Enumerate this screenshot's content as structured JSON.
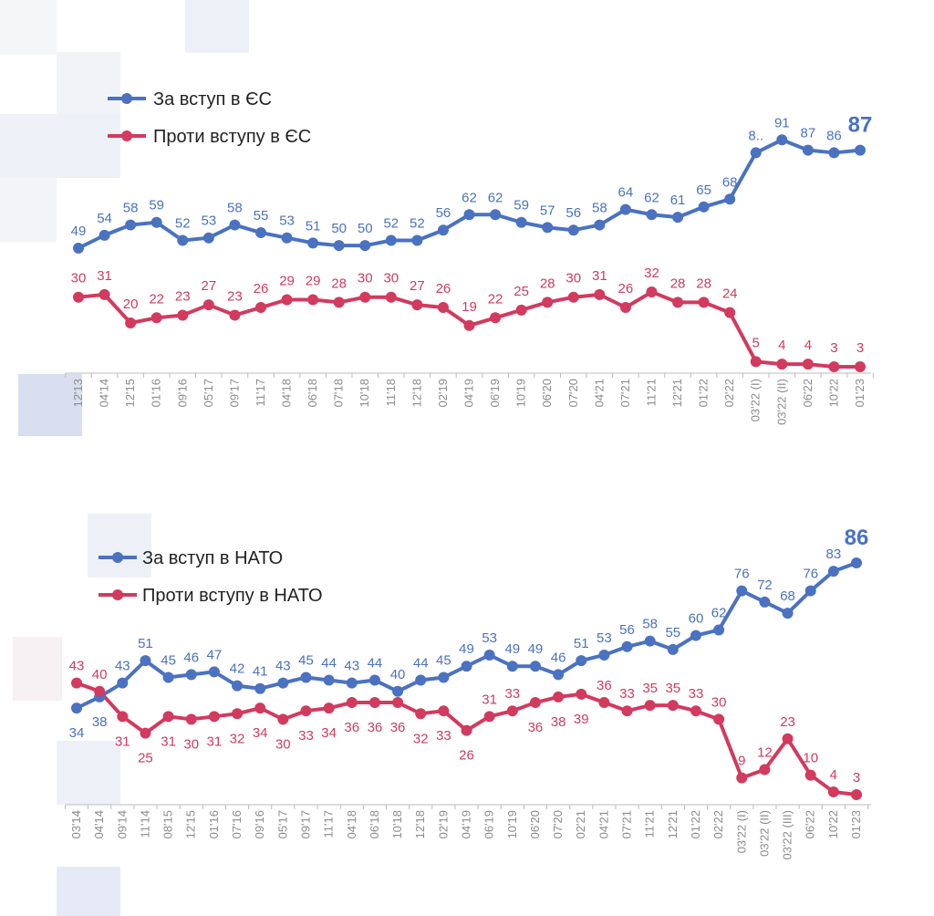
{
  "colors": {
    "blue": "#4a72c0",
    "red": "#d23a5e",
    "axis": "#bbbbbb"
  },
  "chart_data": [
    {
      "type": "line",
      "title": "",
      "legend_position": "top-left",
      "categories": [
        "12'13",
        "04'14",
        "12'15",
        "01'16",
        "09'16",
        "05'17",
        "09'17",
        "11'17",
        "04'18",
        "06'18",
        "07'18",
        "10'18",
        "11'18",
        "12'18",
        "02'19",
        "04'19",
        "06'19",
        "10'19",
        "06'20",
        "07'20",
        "04'21",
        "07'21",
        "11'21",
        "12'21",
        "01'22",
        "02'22",
        "03'22 (I)",
        "03'22 (II)",
        "06'22",
        "10'22",
        "01'23"
      ],
      "series": [
        {
          "name": "За вступ в ЄС",
          "color": "#4a72c0",
          "values": [
            49,
            54,
            58,
            59,
            52,
            53,
            58,
            55,
            53,
            51,
            50,
            50,
            52,
            52,
            56,
            62,
            62,
            59,
            57,
            56,
            58,
            64,
            62,
            61,
            65,
            68,
            86,
            91,
            87,
            86,
            87
          ],
          "labels": [
            "49",
            "54",
            "58",
            "59",
            "52",
            "53",
            "58",
            "55",
            "53",
            "51",
            "50",
            "50",
            "52",
            "52",
            "56",
            "62",
            "62",
            "59",
            "57",
            "56",
            "58",
            "64",
            "62",
            "61",
            "65",
            "68",
            "8..",
            "91",
            "87",
            "86",
            "87"
          ]
        },
        {
          "name": "Проти вступу в ЄС",
          "color": "#d23a5e",
          "values": [
            30,
            31,
            20,
            22,
            23,
            27,
            23,
            26,
            29,
            29,
            28,
            30,
            30,
            27,
            26,
            19,
            22,
            25,
            28,
            30,
            31,
            26,
            32,
            28,
            28,
            24,
            5,
            4,
            4,
            3,
            3
          ],
          "labels": [
            "30",
            "31",
            "20",
            "22",
            "23",
            "27",
            "23",
            "26",
            "29",
            "29",
            "28",
            "30",
            "30",
            "27",
            "26",
            "19",
            "22",
            "25",
            "28",
            "30",
            "31",
            "26",
            "32",
            "28",
            "28",
            "24",
            "5",
            "4",
            "4",
            "3",
            "3"
          ]
        }
      ]
    },
    {
      "type": "line",
      "title": "",
      "legend_position": "top-left",
      "categories": [
        "03'14",
        "04'14",
        "09'14",
        "11'14",
        "08'15",
        "12'15",
        "01'16",
        "07'16",
        "09'16",
        "05'17",
        "09'17",
        "11'17",
        "04'18",
        "06'18",
        "10'18",
        "12'18",
        "02'19",
        "04'19",
        "06'19",
        "10'19",
        "06'20",
        "07'20",
        "02'21",
        "04'21",
        "07'21",
        "11'21",
        "12'21",
        "01'22",
        "02'22",
        "03'22 (I)",
        "03'22 (II)",
        "03'22 (III)",
        "06'22",
        "10'22",
        "01'23"
      ],
      "series": [
        {
          "name": "За вступ в НАТО",
          "color": "#4a72c0",
          "values": [
            34,
            38,
            43,
            51,
            45,
            46,
            47,
            42,
            41,
            43,
            45,
            44,
            43,
            44,
            40,
            44,
            45,
            49,
            53,
            49,
            49,
            46,
            51,
            53,
            56,
            58,
            55,
            60,
            62,
            76,
            72,
            68,
            76,
            83,
            86
          ],
          "labels": [
            "34",
            "38",
            "43",
            "51",
            "45",
            "46",
            "47",
            "42",
            "41",
            "43",
            "45",
            "44",
            "43",
            "44",
            "40",
            "44",
            "45",
            "49",
            "53",
            "49",
            "49",
            "46",
            "51",
            "53",
            "56",
            "58",
            "55",
            "60",
            "62",
            "76",
            "72",
            "68",
            "76",
            "83",
            "86"
          ]
        },
        {
          "name": "Проти вступу в НАТО",
          "color": "#d23a5e",
          "values": [
            43,
            40,
            31,
            25,
            31,
            30,
            31,
            32,
            34,
            30,
            33,
            34,
            36,
            36,
            36,
            32,
            33,
            26,
            31,
            33,
            36,
            38,
            39,
            36,
            33,
            35,
            35,
            33,
            30,
            9,
            12,
            23,
            10,
            4,
            3
          ],
          "labels": [
            "43",
            "40",
            "31",
            "25",
            "31",
            "30",
            "31",
            "32",
            "34",
            "30",
            "33",
            "34",
            "36",
            "36",
            "36",
            "32",
            "33",
            "26",
            "31",
            "33",
            "36",
            "38",
            "39",
            "36",
            "33",
            "35",
            "35",
            "33",
            "30",
            "9",
            "12",
            "23",
            "10",
            "4",
            "3"
          ]
        }
      ]
    }
  ]
}
